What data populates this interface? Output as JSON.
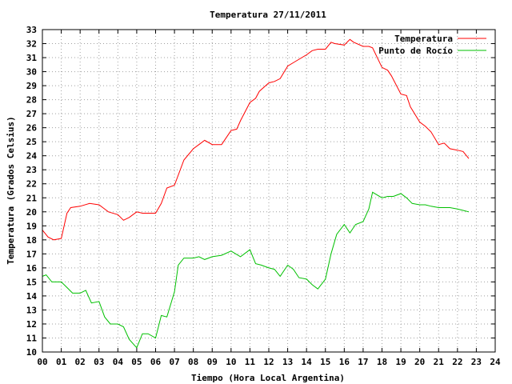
{
  "chart_data": {
    "type": "line",
    "title": "Temperatura 27/11/2011",
    "xlabel": "Tiempo (Hora Local Argentina)",
    "ylabel": "Temperatura (Grados Celsius)",
    "xlim": [
      0,
      24
    ],
    "ylim": [
      10,
      33
    ],
    "x_ticks": [
      "00",
      "01",
      "02",
      "03",
      "04",
      "05",
      "06",
      "07",
      "08",
      "09",
      "10",
      "11",
      "12",
      "13",
      "14",
      "15",
      "16",
      "17",
      "18",
      "19",
      "20",
      "21",
      "22",
      "23",
      "24"
    ],
    "y_ticks": [
      "10",
      "11",
      "12",
      "13",
      "14",
      "15",
      "16",
      "17",
      "18",
      "19",
      "20",
      "21",
      "22",
      "23",
      "24",
      "25",
      "26",
      "27",
      "28",
      "29",
      "30",
      "31",
      "32",
      "33"
    ],
    "grid": true,
    "legend_position": "top-right",
    "colors": {
      "temperatura": "#ff0000",
      "punto_de_rocio": "#00c000",
      "grid": "#a0a0a0"
    },
    "series": [
      {
        "name": "Temperatura",
        "color": "#ff0000",
        "x": [
          0.0,
          0.3,
          0.6,
          1.0,
          1.3,
          1.5,
          2.0,
          2.5,
          3.0,
          3.2,
          3.5,
          4.0,
          4.3,
          4.6,
          5.0,
          5.3,
          6.0,
          6.3,
          6.6,
          7.0,
          7.5,
          8.0,
          8.3,
          8.6,
          9.0,
          9.5,
          10.0,
          10.3,
          10.5,
          11.0,
          11.3,
          11.5,
          12.0,
          12.3,
          12.6,
          13.0,
          13.5,
          14.0,
          14.3,
          14.6,
          15.0,
          15.3,
          15.5,
          16.0,
          16.3,
          16.5,
          17.0,
          17.3,
          17.5,
          18.0,
          18.3,
          18.5,
          19.0,
          19.3,
          19.5,
          20.0,
          20.3,
          20.6,
          21.0,
          21.3,
          21.6,
          22.0,
          22.3,
          22.6
        ],
        "y": [
          18.7,
          18.2,
          18.0,
          18.1,
          19.9,
          20.3,
          20.4,
          20.6,
          20.5,
          20.3,
          20.0,
          19.8,
          19.4,
          19.6,
          20.0,
          19.9,
          19.9,
          20.6,
          21.7,
          21.9,
          23.7,
          24.5,
          24.8,
          25.1,
          24.8,
          24.8,
          25.8,
          25.9,
          26.5,
          27.8,
          28.1,
          28.6,
          29.2,
          29.3,
          29.5,
          30.4,
          30.8,
          31.2,
          31.5,
          31.6,
          31.6,
          32.1,
          32.0,
          31.9,
          32.3,
          32.1,
          31.8,
          31.8,
          31.7,
          30.3,
          30.1,
          29.7,
          28.4,
          28.3,
          27.5,
          26.4,
          26.1,
          25.7,
          24.8,
          24.9,
          24.5,
          24.4,
          24.3,
          23.8
        ]
      },
      {
        "name": "Punto de Rocío",
        "color": "#00c000",
        "x": [
          0.0,
          0.2,
          0.5,
          1.0,
          1.3,
          1.6,
          2.0,
          2.3,
          2.6,
          3.0,
          3.3,
          3.6,
          4.0,
          4.3,
          4.6,
          5.0,
          5.3,
          5.6,
          6.0,
          6.3,
          6.6,
          7.0,
          7.2,
          7.5,
          8.0,
          8.3,
          8.6,
          9.0,
          9.5,
          10.0,
          10.5,
          11.0,
          11.3,
          11.6,
          12.0,
          12.3,
          12.6,
          13.0,
          13.3,
          13.6,
          14.0,
          14.3,
          14.6,
          15.0,
          15.3,
          15.6,
          16.0,
          16.3,
          16.6,
          17.0,
          17.3,
          17.5,
          18.0,
          18.3,
          18.6,
          19.0,
          19.3,
          19.6,
          20.0,
          20.3,
          20.6,
          21.0,
          21.3,
          21.6,
          22.0,
          22.3,
          22.6
        ],
        "y": [
          15.4,
          15.5,
          15.0,
          15.0,
          14.6,
          14.2,
          14.2,
          14.4,
          13.5,
          13.6,
          12.5,
          12.0,
          12.0,
          11.8,
          10.9,
          10.3,
          11.3,
          11.3,
          11.0,
          12.6,
          12.5,
          14.3,
          16.2,
          16.7,
          16.7,
          16.8,
          16.6,
          16.8,
          16.9,
          17.2,
          16.8,
          17.3,
          16.3,
          16.2,
          16.0,
          15.9,
          15.4,
          16.2,
          15.9,
          15.3,
          15.2,
          14.8,
          14.5,
          15.2,
          17.0,
          18.4,
          19.1,
          18.5,
          19.1,
          19.3,
          20.2,
          21.4,
          21.0,
          21.1,
          21.1,
          21.3,
          21.0,
          20.6,
          20.5,
          20.5,
          20.4,
          20.3,
          20.3,
          20.3,
          20.2,
          20.1,
          20.0
        ]
      }
    ]
  }
}
